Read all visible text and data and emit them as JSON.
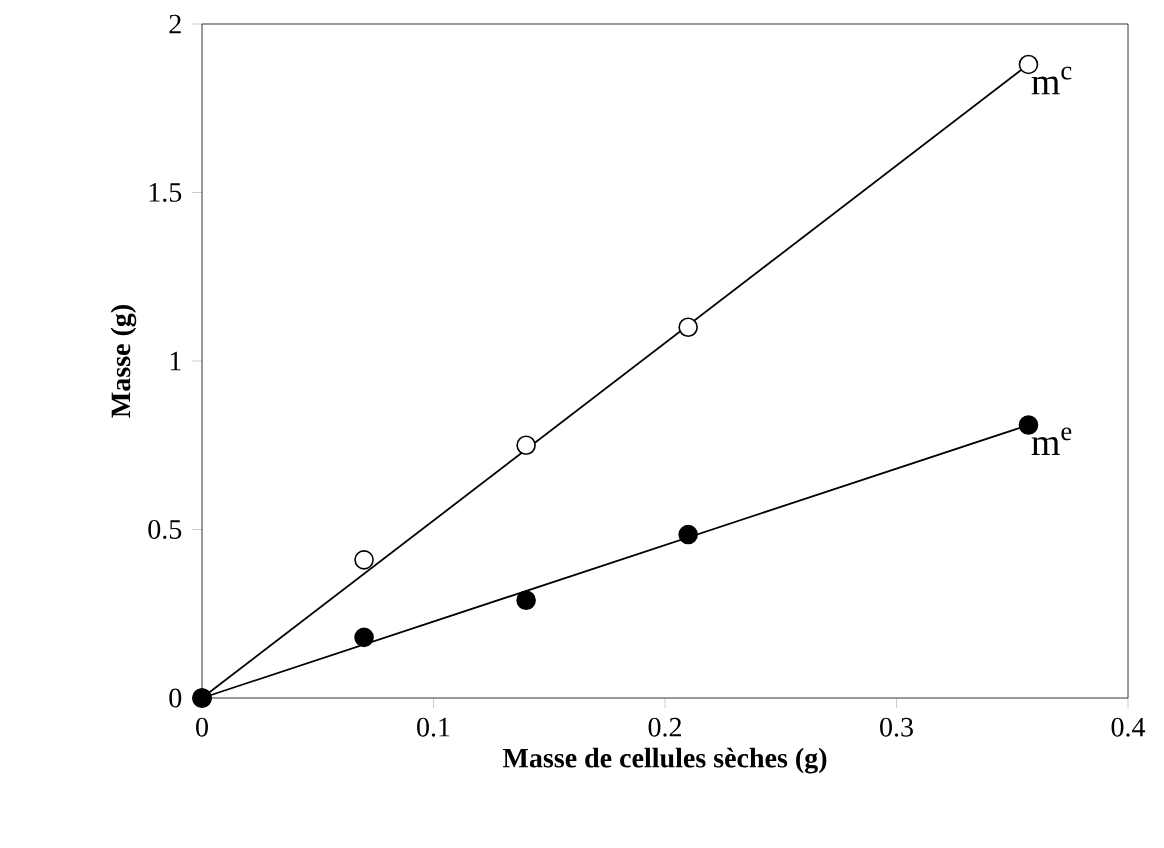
{
  "chart_data": {
    "type": "scatter",
    "xlabel": "Masse de cellules sèches (g)",
    "ylabel": "Masse (g)",
    "xlim": [
      0,
      0.4
    ],
    "xticks": [
      0,
      0.1,
      0.2,
      0.3,
      0.4
    ],
    "ylim": [
      0,
      2
    ],
    "yticks": [
      0,
      {
        "value": 0.5,
        "label": "0.5"
      },
      1,
      {
        "value": 1.5,
        "label": "1.5"
      },
      2
    ],
    "grid": false,
    "legend": false,
    "marker": "circle",
    "series": [
      {
        "color": "#ffffff",
        "x": [
          0,
          0.07,
          0.14,
          0.21,
          0.357
        ],
        "values": [
          0,
          0.41,
          0.75,
          1.1,
          1.88
        ]
      },
      {
        "color": "#000000",
        "x": [
          0,
          0.07,
          0.14,
          0.21,
          0.357
        ],
        "values": [
          0,
          0.18,
          0.29,
          0.485,
          0.81
        ]
      },
      {
        "type": "line",
        "name": "m$^{c}$",
        "color": "#000000",
        "marker": "none",
        "x": [
          0,
          0.357
        ],
        "values": [
          0,
          1.88
        ]
      },
      {
        "type": "line",
        "name": "m$^{e}$",
        "color": "#000000",
        "marker": "none",
        "x": [
          0,
          0.357
        ],
        "values": [
          0,
          0.81
        ]
      }
    ]
  }
}
